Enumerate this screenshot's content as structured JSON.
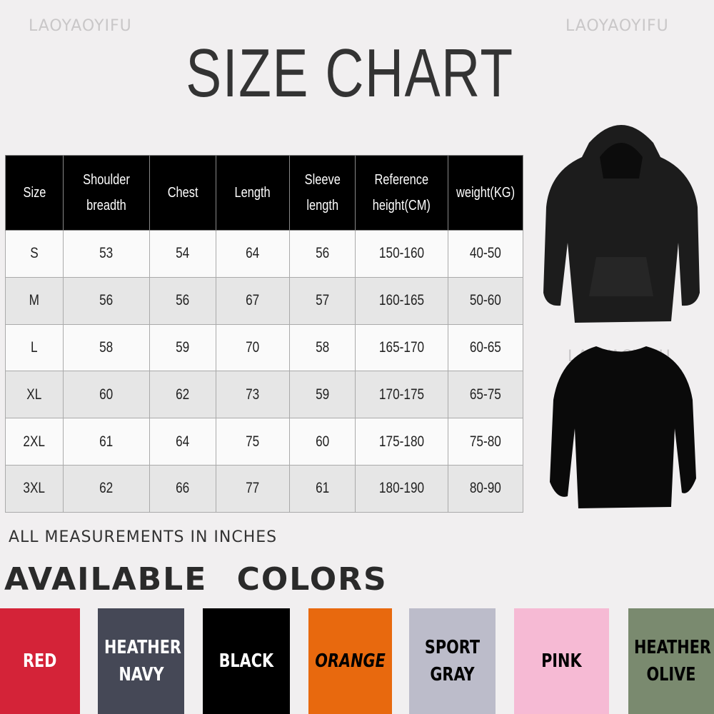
{
  "watermark": "LAOYAOYIFU",
  "title": "SIZE CHART",
  "table": {
    "headers": [
      "Size",
      "Shoulder breadth",
      "Chest",
      "Length",
      "Sleeve length",
      "Reference height(CM)",
      "weight(KG)"
    ],
    "rows": [
      [
        "S",
        "53",
        "54",
        "64",
        "56",
        "150-160",
        "40-50"
      ],
      [
        "M",
        "56",
        "56",
        "67",
        "57",
        "160-165",
        "50-60"
      ],
      [
        "L",
        "58",
        "59",
        "70",
        "58",
        "165-170",
        "60-65"
      ],
      [
        "XL",
        "60",
        "62",
        "73",
        "59",
        "170-175",
        "65-75"
      ],
      [
        "2XL",
        "61",
        "64",
        "75",
        "60",
        "175-180",
        "75-80"
      ],
      [
        "3XL",
        "62",
        "66",
        "77",
        "61",
        "180-190",
        "80-90"
      ]
    ]
  },
  "note": "ALL MEASUREMENTS IN INCHES",
  "colors_heading": "AVAILABLE COLORS",
  "colors": [
    {
      "label": "RED",
      "bg": "#d42338",
      "fg": "#ffffff"
    },
    {
      "label": "HEATHER NAVY",
      "bg": "#454856",
      "fg": "#ffffff"
    },
    {
      "label": "BLACK",
      "bg": "#000000",
      "fg": "#ffffff"
    },
    {
      "label": "ORANGE",
      "bg": "#e8690e",
      "fg": "#000000"
    },
    {
      "label": "SPORT GRAY",
      "bg": "#bcbcca",
      "fg": "#000000"
    },
    {
      "label": "PINK",
      "bg": "#f6bad4",
      "fg": "#000000"
    },
    {
      "label": "HEATHER OLIVE",
      "bg": "#7a8a6f",
      "fg": "#000000"
    }
  ],
  "products": [
    {
      "icon": "black-hoodie"
    },
    {
      "icon": "black-sweatshirt"
    }
  ]
}
